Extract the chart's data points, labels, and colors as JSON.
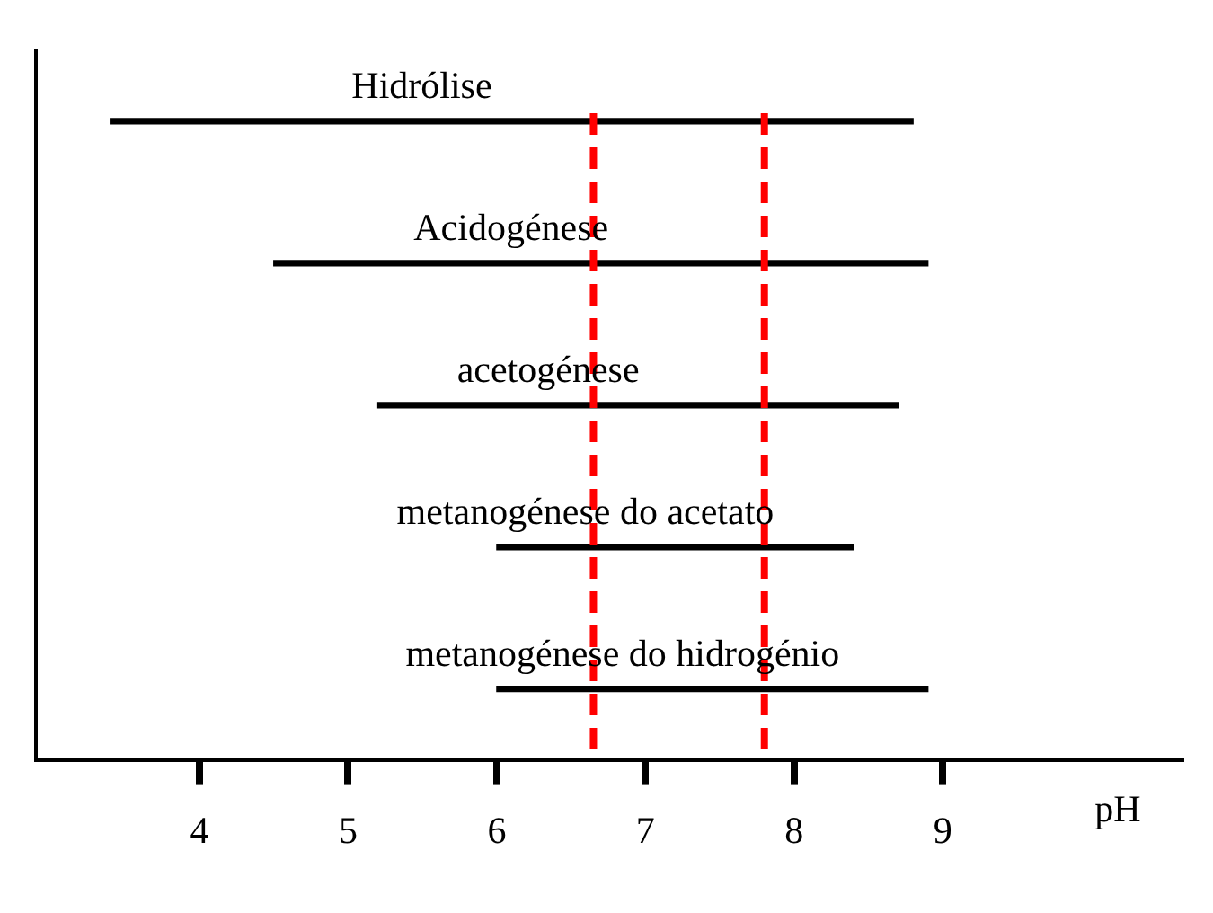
{
  "chart_data": {
    "type": "bar",
    "orientation": "horizontal",
    "xlabel": "pH",
    "categories": [
      "Hidrólise",
      "Acidogénese",
      "acetogénese",
      "metanogénese do acetato",
      "metanogénese do hidrogénio"
    ],
    "base": [
      3.4,
      4.5,
      5.2,
      6.0,
      6.0
    ],
    "values": [
      5.4,
      4.4,
      3.5,
      2.4,
      2.9
    ],
    "color": "#000000",
    "xlim": [
      2.9,
      10.6
    ],
    "xticks": [
      4,
      5,
      6,
      7,
      8,
      9
    ],
    "ref_lines": [
      {
        "axis": "x",
        "value": 6.65,
        "color": "#ff0000",
        "line_style": "dashed"
      },
      {
        "axis": "x",
        "value": 7.8,
        "color": "#ff0000",
        "line_style": "dashed"
      }
    ],
    "legend": false,
    "tick_labels": "x"
  }
}
